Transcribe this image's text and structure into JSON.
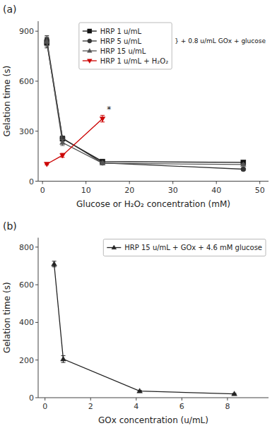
{
  "chart_data": [
    {
      "type": "line",
      "title": "(a)",
      "x_label": "Glucose or H₂O₂ concentration (mM)",
      "y_label": "Gelation time (s)",
      "xlim": [
        -1,
        52
      ],
      "ylim": [
        0,
        960
      ],
      "xticks": [
        0,
        10,
        20,
        30,
        40,
        50
      ],
      "yticks": [
        0,
        300,
        600,
        900
      ],
      "grid": false,
      "legend": "upper right",
      "series": [
        {
          "name": "HRP 1 u/mL",
          "color": "#111111",
          "marker": "square",
          "line_style": "solid",
          "x": [
            1,
            4.6,
            13.8,
            46.2
          ],
          "values": [
            830,
            255,
            118,
            113
          ],
          "errors": [
            30,
            15,
            8,
            8
          ]
        },
        {
          "name": "HRP 5 u/mL",
          "color": "#333333",
          "marker": "circle",
          "line_style": "solid",
          "x": [
            1,
            4.6,
            13.8,
            46.2
          ],
          "values": [
            848,
            258,
            110,
            72
          ],
          "errors": [
            25,
            12,
            7,
            6
          ]
        },
        {
          "name": "HRP 15 u/mL",
          "color": "#555555",
          "marker": "triangle-up",
          "line_style": "solid",
          "x": [
            1,
            4.6,
            13.8,
            46.2
          ],
          "values": [
            838,
            232,
            108,
            100
          ],
          "errors": [
            28,
            18,
            7,
            7
          ]
        },
        {
          "name": "HRP 1 u/mL + H₂O₂",
          "color": "#cc0000",
          "marker": "triangle-down",
          "line_style": "solid",
          "x": [
            1,
            4.6,
            13.8
          ],
          "values": [
            103,
            155,
            375
          ],
          "errors": [
            5,
            12,
            20
          ]
        }
      ],
      "annotations": [
        {
          "text": "*",
          "x": 14.8,
          "y": 415
        },
        {
          "text": "} + 0.8 u/mL GOx + glucose"
        }
      ]
    },
    {
      "type": "line",
      "title": "(b)",
      "x_label": "GOx concentration (u/mL)",
      "y_label": "Gelation time (s)",
      "xlim": [
        -0.3,
        9.8
      ],
      "ylim": [
        0,
        850
      ],
      "xticks": [
        0,
        2,
        4,
        6,
        8
      ],
      "yticks": [
        0,
        200,
        400,
        600,
        800
      ],
      "grid": false,
      "legend": "upper right",
      "series": [
        {
          "name": "HRP 15 u/mL + GOx + 4.6 mM glucose",
          "color": "#222222",
          "marker": "triangle-up",
          "line_style": "solid",
          "x": [
            0.4,
            0.8,
            4.15,
            8.3
          ],
          "values": [
            710,
            205,
            35,
            20
          ],
          "errors": [
            15,
            18,
            4,
            3
          ]
        }
      ]
    }
  ]
}
